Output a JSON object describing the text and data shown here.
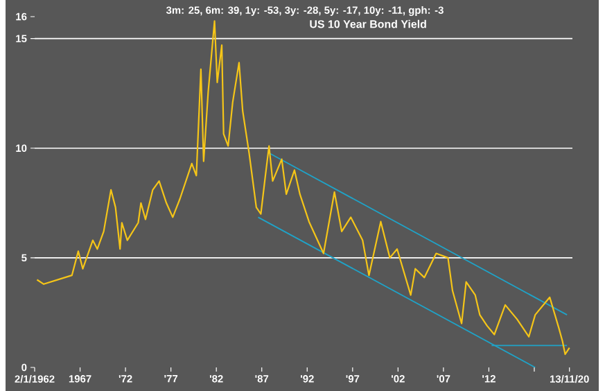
{
  "chart_data": {
    "type": "line",
    "title": "US 10 Year Bond Yield",
    "annotations": [
      "3m: 25,    6m: 39,    1y: -53,    3y: -28,    5y: -17,    10y: -11,    gph: -3"
    ],
    "xlim": [
      1962,
      2021.2
    ],
    "ylim": [
      0,
      16
    ],
    "xticks": [
      {
        "value": 1962.0,
        "label": "2/1/1962"
      },
      {
        "value": 1967,
        "label": "1967"
      },
      {
        "value": 1972,
        "label": "'72"
      },
      {
        "value": 1977,
        "label": "'77"
      },
      {
        "value": 1982,
        "label": "'82"
      },
      {
        "value": 1987,
        "label": "'87"
      },
      {
        "value": 1992,
        "label": "'92"
      },
      {
        "value": 1997,
        "label": "'97"
      },
      {
        "value": 2002,
        "label": "'02"
      },
      {
        "value": 2007,
        "label": "'07"
      },
      {
        "value": 2012,
        "label": "'12"
      },
      {
        "value": 2017,
        "label": null
      },
      {
        "value": 2020.87,
        "label": "13/11/20"
      }
    ],
    "yticks": [
      0,
      5,
      10,
      15,
      16
    ],
    "grid": "y",
    "series": [
      {
        "color": "#f5c518",
        "x": [
          1962.26,
          1963.0,
          1965.3,
          1966.1,
          1966.8,
          1967.3,
          1968.4,
          1968.9,
          1969.6,
          1970.4,
          1970.9,
          1971.4,
          1971.6,
          1972.2,
          1973.4,
          1973.7,
          1974.2,
          1975.0,
          1975.7,
          1976.5,
          1977.2,
          1978.0,
          1979.3,
          1979.8,
          1980.3,
          1980.6,
          1981.1,
          1981.8,
          1982.1,
          1982.6,
          1982.8,
          1983.3,
          1983.8,
          1984.5,
          1984.9,
          1985.6,
          1986.4,
          1986.9,
          1987.4,
          1987.8,
          1988.2,
          1989.2,
          1989.7,
          1990.6,
          1991.2,
          1992.2,
          1993.8,
          1995.0,
          1995.8,
          1996.8,
          1998.1,
          1998.8,
          2000.1,
          2001.1,
          2001.9,
          2003.4,
          2003.9,
          2004.9,
          2006.2,
          2007.5,
          2008.0,
          2009.0,
          2009.5,
          2010.5,
          2011.0,
          2011.8,
          2012.6,
          2013.8,
          2015.1,
          2016.4,
          2017.1,
          2018.7,
          2019.7,
          2020.1,
          2020.4,
          2020.87
        ],
        "values": [
          4.0,
          3.8,
          4.1,
          4.2,
          5.3,
          4.5,
          5.8,
          5.4,
          6.2,
          8.1,
          7.3,
          5.4,
          6.6,
          5.8,
          6.6,
          7.5,
          6.75,
          8.1,
          8.5,
          7.5,
          6.85,
          7.7,
          9.3,
          8.75,
          13.6,
          9.4,
          12.55,
          15.8,
          13.0,
          14.7,
          10.65,
          10.1,
          12.1,
          13.9,
          11.7,
          9.8,
          7.3,
          7.0,
          8.75,
          10.1,
          8.5,
          9.5,
          7.9,
          9.0,
          7.9,
          6.65,
          5.2,
          8.0,
          6.2,
          6.85,
          5.8,
          4.2,
          6.65,
          5.0,
          5.4,
          3.3,
          4.5,
          4.1,
          5.2,
          5.0,
          3.5,
          2.0,
          3.9,
          3.3,
          2.4,
          1.9,
          1.5,
          2.85,
          2.2,
          1.4,
          2.4,
          3.2,
          1.8,
          1.2,
          0.6,
          0.9
        ]
      },
      {
        "type": "line",
        "color": "#1fa3c8",
        "x": [
          1987.7,
          2020.6
        ],
        "values": [
          9.8,
          2.4
        ]
      },
      {
        "type": "line",
        "color": "#1fa3c8",
        "x": [
          1986.6,
          2017.1
        ],
        "values": [
          6.85,
          0
        ]
      },
      {
        "type": "line",
        "color": "#1fa3c8",
        "x": [
          2012.3,
          2020.6
        ],
        "values": [
          1.0,
          1.0
        ]
      }
    ]
  }
}
